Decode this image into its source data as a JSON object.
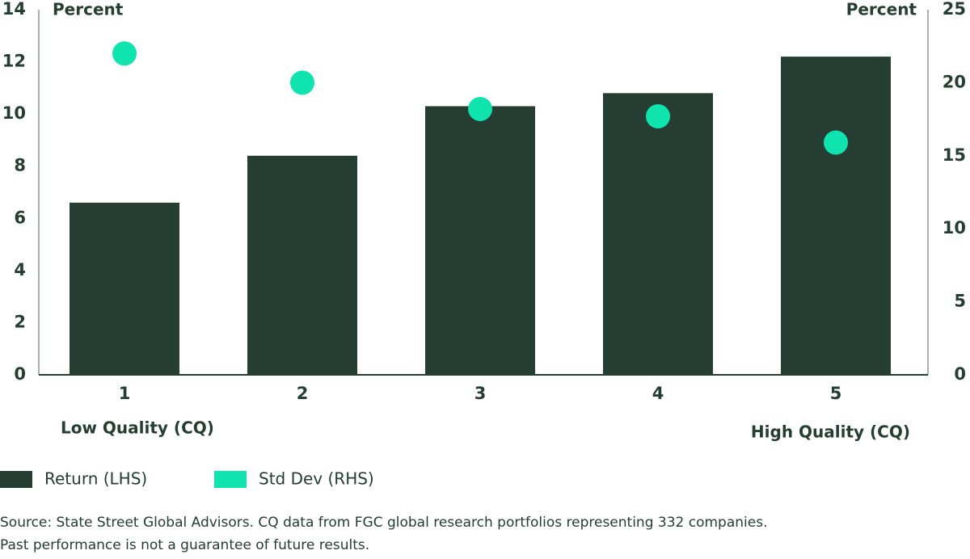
{
  "chart_data": {
    "type": "bar",
    "categories": [
      "1",
      "2",
      "3",
      "4",
      "5"
    ],
    "series": [
      {
        "name": "Return (LHS)",
        "type": "bar",
        "color": "#263d34",
        "values": [
          6.6,
          8.4,
          10.3,
          10.8,
          12.2
        ]
      },
      {
        "name": "Std Dev (RHS)",
        "type": "scatter",
        "axis": "y2",
        "color": "#0fe3ae",
        "values": [
          22.0,
          20.0,
          18.2,
          17.7,
          15.9
        ]
      }
    ],
    "ylabel": "Percent",
    "y2label": "Percent",
    "ylim": [
      0,
      14
    ],
    "yticks": [
      0,
      2,
      4,
      6,
      8,
      10,
      12,
      14
    ],
    "y2lim": [
      0,
      25
    ],
    "y2ticks": [
      0,
      5,
      10,
      15,
      20,
      25
    ],
    "annotations": [
      "Low Quality (CQ)",
      "High Quality (CQ)"
    ],
    "legend": "bottom-left",
    "source": [
      "Source: State Street Global Advisors. CQ data from FGC global research portfolios representing 332 companies.",
      "Past performance is not a guarantee of future results."
    ]
  }
}
